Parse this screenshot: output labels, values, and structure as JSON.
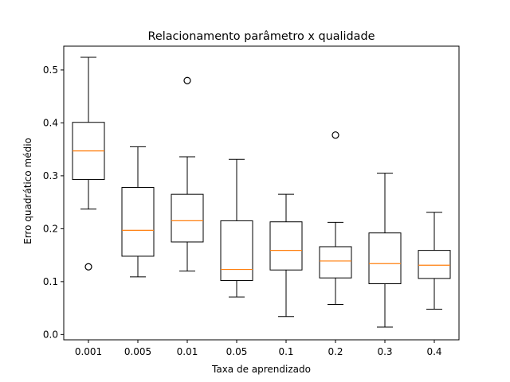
{
  "chart_data": {
    "type": "boxplot",
    "title": "Relacionamento parâmetro x qualidade",
    "xlabel": "Taxa de aprendizado",
    "ylabel": "Erro quadrático médio",
    "ylim": [
      -0.01,
      0.545
    ],
    "yticks": [
      "0.0",
      "0.1",
      "0.2",
      "0.3",
      "0.4",
      "0.5"
    ],
    "grid": false,
    "colors": {
      "box": "#000000",
      "median": "#ff7f0e",
      "background": "#ffffff"
    },
    "categories": [
      "0.001",
      "0.005",
      "0.01",
      "0.05",
      "0.1",
      "0.2",
      "0.3",
      "0.4"
    ],
    "boxes": [
      {
        "category": "0.001",
        "whisker_low": 0.237,
        "q1": 0.293,
        "median": 0.347,
        "q3": 0.401,
        "whisker_high": 0.524,
        "outliers": [
          0.128
        ]
      },
      {
        "category": "0.005",
        "whisker_low": 0.109,
        "q1": 0.148,
        "median": 0.197,
        "q3": 0.278,
        "whisker_high": 0.355,
        "outliers": []
      },
      {
        "category": "0.01",
        "whisker_low": 0.12,
        "q1": 0.175,
        "median": 0.215,
        "q3": 0.265,
        "whisker_high": 0.336,
        "outliers": [
          0.48
        ]
      },
      {
        "category": "0.05",
        "whisker_low": 0.071,
        "q1": 0.102,
        "median": 0.123,
        "q3": 0.215,
        "whisker_high": 0.331,
        "outliers": []
      },
      {
        "category": "0.1",
        "whisker_low": 0.034,
        "q1": 0.122,
        "median": 0.159,
        "q3": 0.213,
        "whisker_high": 0.265,
        "outliers": []
      },
      {
        "category": "0.2",
        "whisker_low": 0.057,
        "q1": 0.107,
        "median": 0.139,
        "q3": 0.166,
        "whisker_high": 0.212,
        "outliers": [
          0.377
        ]
      },
      {
        "category": "0.3",
        "whisker_low": 0.014,
        "q1": 0.096,
        "median": 0.134,
        "q3": 0.192,
        "whisker_high": 0.305,
        "outliers": []
      },
      {
        "category": "0.4",
        "whisker_low": 0.048,
        "q1": 0.106,
        "median": 0.131,
        "q3": 0.159,
        "whisker_high": 0.231,
        "outliers": []
      }
    ]
  }
}
